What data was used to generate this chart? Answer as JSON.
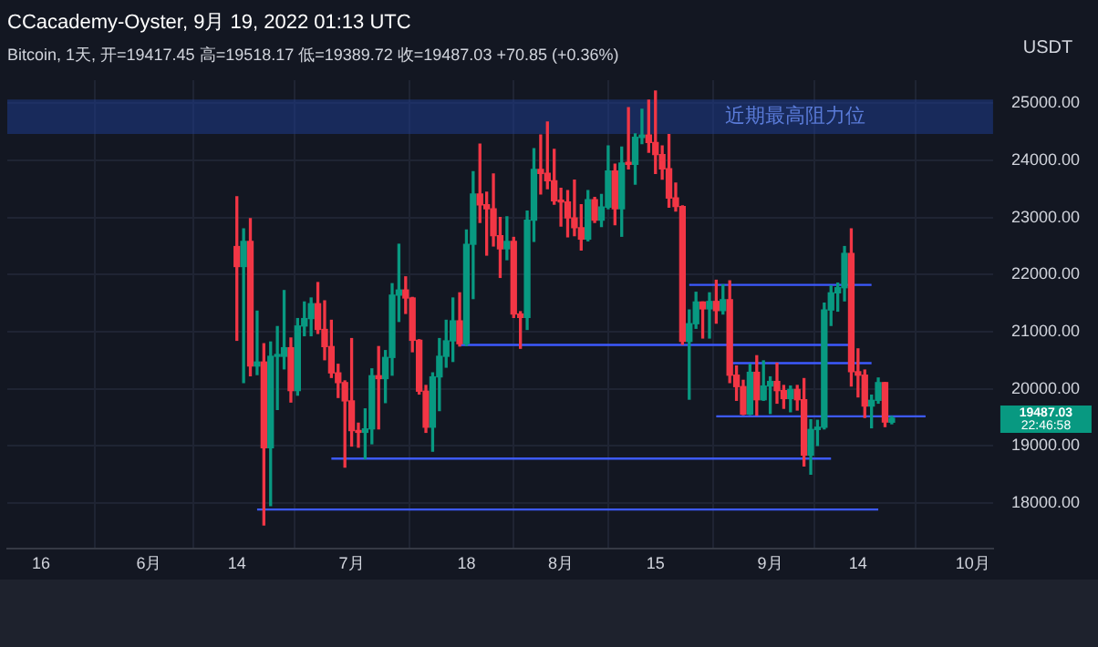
{
  "chart_data": {
    "type": "candlestick",
    "title": "CCacademy-Oyster, 9月 19, 2022 01:13 UTC",
    "subtitle": "Bitcoin, 1天, 开=19417.45 高=19518.17 低=19389.72 收=19487.03 +70.85 (+0.36%)",
    "ylabel": "USDT",
    "colors": [
      "#f23645",
      "#089981",
      "#f23645",
      "#089981",
      "#f23645",
      "#089981",
      "#089981",
      "#089981",
      "#f23645",
      "#089981",
      "#089981",
      "#089981",
      "#f23645",
      "#f23645",
      "#f23645",
      "#f23645",
      "#f23645",
      "#f23645",
      "#f23645",
      "#089981",
      "#089981",
      "#f23645",
      "#089981",
      "#089981",
      "#089981",
      "#f23645",
      "#f23645",
      "#f23645",
      "#f23645",
      "#089981",
      "#089981",
      "#089981",
      "#089981",
      "#f23645",
      "#089981",
      "#089981",
      "#f23645",
      "#f23645",
      "#f23645",
      "#f23645",
      "#089981",
      "#f23645",
      "#f23645",
      "#089981",
      "#089981",
      "#f23645",
      "#f23645",
      "#f23645",
      "#f23645",
      "#f23645",
      "#f23645",
      "#f23645",
      "#089981",
      "#f23645",
      "#089981",
      "#089981",
      "#f23645",
      "#089981",
      "#f23645",
      "#089981",
      "#089981",
      "#f23645",
      "#f23645",
      "#f23645",
      "#f23645",
      "#f23645",
      "#f23645",
      "#089981",
      "#089981",
      "#f23645",
      "#089981",
      "#f23645",
      "#089981",
      "#f23645",
      "#f23645",
      "#f23645",
      "#089981",
      "#f23645",
      "#089981",
      "#089981",
      "#f23645",
      "#f23645",
      "#089981",
      "#f23645",
      "#f23645",
      "#089981",
      "#089981",
      "#089981",
      "#089981",
      "#089981",
      "#089981",
      "#f23645",
      "#f23645",
      "#f23645",
      "#089981",
      "#089981",
      "#f23645",
      "#089981"
    ],
    "x": [
      "2022-06-14",
      "2022-06-15",
      "2022-06-16",
      "2022-06-17",
      "2022-06-18",
      "2022-06-19",
      "2022-06-20",
      "2022-06-21",
      "2022-06-22",
      "2022-06-23",
      "2022-06-24",
      "2022-06-25",
      "2022-06-26",
      "2022-06-27",
      "2022-06-28",
      "2022-06-29",
      "2022-06-30",
      "2022-07-01",
      "2022-07-02",
      "2022-07-03",
      "2022-07-04",
      "2022-07-05",
      "2022-07-06",
      "2022-07-07",
      "2022-07-08",
      "2022-07-09",
      "2022-07-10",
      "2022-07-11",
      "2022-07-12",
      "2022-07-13",
      "2022-07-14",
      "2022-07-15",
      "2022-07-16",
      "2022-07-17",
      "2022-07-18",
      "2022-07-19",
      "2022-07-20",
      "2022-07-21",
      "2022-07-22",
      "2022-07-23",
      "2022-07-24",
      "2022-07-25",
      "2022-07-26",
      "2022-07-27",
      "2022-07-28",
      "2022-07-29",
      "2022-07-30",
      "2022-07-31",
      "2022-08-01",
      "2022-08-02",
      "2022-08-03",
      "2022-08-04",
      "2022-08-05",
      "2022-08-06",
      "2022-08-07",
      "2022-08-08",
      "2022-08-09",
      "2022-08-10",
      "2022-08-11",
      "2022-08-12",
      "2022-08-13",
      "2022-08-14",
      "2022-08-15",
      "2022-08-16",
      "2022-08-17",
      "2022-08-18",
      "2022-08-19",
      "2022-08-20",
      "2022-08-21",
      "2022-08-22",
      "2022-08-23",
      "2022-08-24",
      "2022-08-25",
      "2022-08-26",
      "2022-08-27",
      "2022-08-28",
      "2022-08-29",
      "2022-08-30",
      "2022-08-31",
      "2022-09-01",
      "2022-09-02",
      "2022-09-03",
      "2022-09-04",
      "2022-09-05",
      "2022-09-06",
      "2022-09-07",
      "2022-09-08",
      "2022-09-09",
      "2022-09-10",
      "2022-09-11",
      "2022-09-12",
      "2022-09-13",
      "2022-09-14",
      "2022-09-15",
      "2022-09-16",
      "2022-09-17",
      "2022-09-18",
      "2022-09-19"
    ],
    "ohlc": [
      [
        22490,
        23360,
        20850,
        22140
      ],
      [
        22140,
        22800,
        20110,
        22580
      ],
      [
        22580,
        22980,
        20230,
        20400
      ],
      [
        20400,
        21360,
        20250,
        20470
      ],
      [
        20470,
        20790,
        17620,
        18970
      ],
      [
        18970,
        20820,
        17960,
        20570
      ],
      [
        20570,
        21090,
        19640,
        20570
      ],
      [
        20570,
        21720,
        20350,
        20720
      ],
      [
        20720,
        20890,
        19770,
        19970
      ],
      [
        19970,
        21230,
        19890,
        21100
      ],
      [
        21100,
        21520,
        20930,
        21230
      ],
      [
        21230,
        21590,
        20930,
        21490
      ],
      [
        21490,
        21860,
        20970,
        21040
      ],
      [
        21040,
        21540,
        20510,
        20740
      ],
      [
        20740,
        21200,
        20200,
        20280
      ],
      [
        20280,
        20430,
        19850,
        20110
      ],
      [
        20110,
        20140,
        18630,
        19790
      ],
      [
        19790,
        20880,
        19000,
        19270
      ],
      [
        19270,
        19400,
        18980,
        19240
      ],
      [
        19240,
        19650,
        18780,
        19300
      ],
      [
        19300,
        20350,
        19040,
        20230
      ],
      [
        20230,
        20740,
        19300,
        20180
      ],
      [
        20180,
        20670,
        19760,
        20550
      ],
      [
        20550,
        21840,
        20240,
        21640
      ],
      [
        21640,
        22530,
        21180,
        21730
      ],
      [
        21730,
        21960,
        21320,
        21590
      ],
      [
        21590,
        21600,
        20650,
        20850
      ],
      [
        20850,
        20860,
        19910,
        19960
      ],
      [
        19960,
        20060,
        19240,
        19330
      ],
      [
        19330,
        20280,
        18910,
        20210
      ],
      [
        20210,
        20880,
        19620,
        20570
      ],
      [
        20570,
        21200,
        20380,
        20840
      ],
      [
        20840,
        21590,
        20480,
        21190
      ],
      [
        21190,
        21680,
        20750,
        20790
      ],
      [
        20790,
        22780,
        20760,
        22530
      ],
      [
        22530,
        23800,
        21580,
        23410
      ],
      [
        23410,
        24280,
        22910,
        23220
      ],
      [
        23220,
        23440,
        22340,
        23150
      ],
      [
        23150,
        23760,
        22500,
        22680
      ],
      [
        22680,
        23000,
        21950,
        22450
      ],
      [
        22450,
        23010,
        22260,
        22580
      ],
      [
        22580,
        22650,
        21250,
        21310
      ],
      [
        21310,
        21350,
        20710,
        21250
      ],
      [
        21250,
        23110,
        21040,
        22950
      ],
      [
        22950,
        24200,
        22580,
        23840
      ],
      [
        23840,
        24440,
        23410,
        23770
      ],
      [
        23770,
        24670,
        23500,
        23640
      ],
      [
        23640,
        24190,
        23230,
        23290
      ],
      [
        23290,
        23510,
        22850,
        23270
      ],
      [
        23270,
        23470,
        22660,
        22990
      ],
      [
        22990,
        23650,
        22680,
        22820
      ],
      [
        22820,
        23220,
        22430,
        22620
      ],
      [
        22620,
        23470,
        22590,
        23310
      ],
      [
        23310,
        23350,
        22910,
        22950
      ],
      [
        22950,
        23400,
        22840,
        23180
      ],
      [
        23180,
        24250,
        23150,
        23810
      ],
      [
        23810,
        23930,
        22870,
        23150
      ],
      [
        23150,
        24230,
        22670,
        23950
      ],
      [
        23950,
        24920,
        23850,
        23930
      ],
      [
        23930,
        24460,
        23580,
        24400
      ],
      [
        24400,
        24890,
        24290,
        24440
      ],
      [
        24440,
        25050,
        24140,
        24310
      ],
      [
        24310,
        25210,
        23770,
        24100
      ],
      [
        24100,
        24250,
        23670,
        23850
      ],
      [
        23850,
        24450,
        23180,
        23340
      ],
      [
        23340,
        23600,
        23110,
        23190
      ],
      [
        23190,
        23200,
        20780,
        20830
      ],
      [
        20830,
        21380,
        19820,
        21140
      ],
      [
        21140,
        21690,
        21060,
        21520
      ],
      [
        21520,
        21520,
        20890,
        21400
      ],
      [
        21400,
        21680,
        20890,
        21530
      ],
      [
        21530,
        21900,
        21150,
        21370
      ],
      [
        21370,
        21820,
        21310,
        21560
      ],
      [
        21560,
        21890,
        20110,
        20240
      ],
      [
        20240,
        20400,
        19800,
        20040
      ],
      [
        20040,
        20150,
        19550,
        19560
      ],
      [
        19560,
        20430,
        19550,
        20290
      ],
      [
        20290,
        20580,
        19540,
        19810
      ],
      [
        19810,
        20490,
        19800,
        20050
      ],
      [
        20050,
        20210,
        19570,
        20130
      ],
      [
        20130,
        20450,
        19750,
        19970
      ],
      [
        19970,
        20060,
        19660,
        19830
      ],
      [
        19830,
        20050,
        19600,
        19990
      ],
      [
        19990,
        20060,
        19630,
        19810
      ],
      [
        19810,
        20180,
        18650,
        18840
      ],
      [
        18840,
        19460,
        18510,
        19290
      ],
      [
        19290,
        19450,
        19010,
        19330
      ],
      [
        19330,
        21500,
        19300,
        21380
      ],
      [
        21380,
        21800,
        21110,
        21680
      ],
      [
        21680,
        21850,
        21360,
        21770
      ],
      [
        21770,
        22490,
        21540,
        22370
      ],
      [
        22370,
        22800,
        20050,
        20300
      ],
      [
        20300,
        20700,
        19860,
        20240
      ],
      [
        20240,
        20330,
        19500,
        19700
      ],
      [
        19700,
        19890,
        19320,
        19800
      ],
      [
        19800,
        20190,
        19750,
        20110
      ],
      [
        20110,
        20110,
        19340,
        19420
      ],
      [
        19417.45,
        19518.17,
        19389.72,
        19487.03
      ]
    ],
    "series": [
      {
        "type": "line",
        "color": "#3d5afe",
        "x": [
          "2022-08-20",
          "2022-09-16"
        ],
        "values": [
          21820,
          21820
        ]
      },
      {
        "type": "line",
        "color": "#3d5afe",
        "x": [
          "2022-07-17",
          "2022-09-13"
        ],
        "values": [
          20770,
          20770
        ]
      },
      {
        "type": "line",
        "color": "#3d5afe",
        "x": [
          "2022-08-26",
          "2022-09-16"
        ],
        "values": [
          20450,
          20450
        ]
      },
      {
        "type": "line",
        "color": "#3d5afe",
        "x": [
          "2022-08-24",
          "2022-09-24"
        ],
        "values": [
          19520,
          19520
        ]
      },
      {
        "type": "line",
        "color": "#3d5afe",
        "x": [
          "2022-06-28",
          "2022-09-10"
        ],
        "values": [
          18780,
          18780
        ]
      },
      {
        "type": "line",
        "color": "#3d5afe",
        "x": [
          "2022-06-17",
          "2022-09-17"
        ],
        "values": [
          17890,
          17890
        ]
      }
    ],
    "bands": [
      {
        "axis": "y",
        "from": 24460,
        "to": 25060,
        "label": "近期最高阻力位",
        "color": "#1e3a8a"
      }
    ],
    "annotations": [
      "19487.03",
      "22:46:58"
    ],
    "xlim": [
      "2022-05-11",
      "2022-10-04"
    ],
    "xticks": [
      {
        "value": "2022-05-16",
        "label": "16"
      },
      {
        "value": "2022-06-01",
        "label": "6月"
      },
      {
        "value": "2022-06-14",
        "label": "14"
      },
      {
        "value": "2022-07-01",
        "label": "7月"
      },
      {
        "value": "2022-07-18",
        "label": "18"
      },
      {
        "value": "2022-08-01",
        "label": "8月"
      },
      {
        "value": "2022-08-15",
        "label": "15"
      },
      {
        "value": "2022-09-01",
        "label": "9月"
      },
      {
        "value": "2022-09-14",
        "label": "14"
      },
      {
        "value": "2022-10-01",
        "label": "10月"
      }
    ],
    "ylim": [
      17200,
      25400
    ],
    "yticks": [
      {
        "value": 18000,
        "label": "18000.00"
      },
      {
        "value": 19000,
        "label": "19000.00"
      },
      {
        "value": 20000,
        "label": "20000.00"
      },
      {
        "value": 21000,
        "label": "21000.00"
      },
      {
        "value": 22000,
        "label": "22000.00"
      },
      {
        "value": 23000,
        "label": "23000.00"
      },
      {
        "value": 24000,
        "label": "24000.00"
      },
      {
        "value": 25000,
        "label": "25000.00"
      }
    ],
    "grid": true,
    "legend": false
  }
}
